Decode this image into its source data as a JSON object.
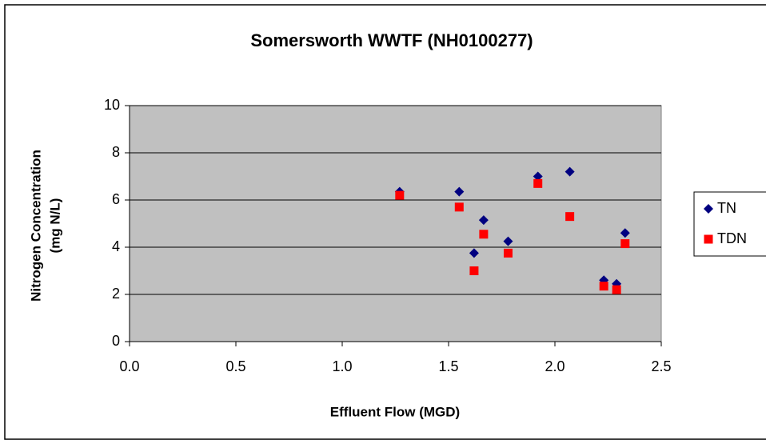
{
  "chart_data": {
    "type": "scatter",
    "title": "Somersworth WWTF (NH0100277)",
    "xlabel": "Effluent Flow (MGD)",
    "ylabel": [
      "Nitrogen Concentration",
      "(mg N/L)"
    ],
    "x": [
      1.27,
      1.55,
      1.62,
      1.665,
      1.78,
      1.92,
      2.07,
      2.23,
      2.29,
      2.33
    ],
    "series": [
      {
        "name": "TN",
        "color": "#000080",
        "marker": "diamond",
        "values": [
          6.35,
          6.35,
          3.75,
          5.15,
          4.25,
          7.0,
          7.2,
          2.6,
          2.45,
          4.6
        ]
      },
      {
        "name": "TDN",
        "color": "#ff0000",
        "marker": "square",
        "values": [
          6.2,
          5.7,
          3.0,
          4.55,
          3.75,
          6.7,
          5.3,
          2.35,
          2.2,
          4.15
        ]
      }
    ],
    "xlim": [
      0,
      2.5
    ],
    "xticks": [
      {
        "value": 0,
        "label": "0.0"
      },
      0.5,
      {
        "value": 1,
        "label": "1.0"
      },
      1.5,
      {
        "value": 2,
        "label": "2.0"
      },
      2.5
    ],
    "ylim": [
      0,
      10
    ],
    "yticks": [
      0,
      2,
      4,
      6,
      8,
      10
    ],
    "grid": true,
    "plot_background": "#c0c0c0",
    "legend": "right"
  }
}
